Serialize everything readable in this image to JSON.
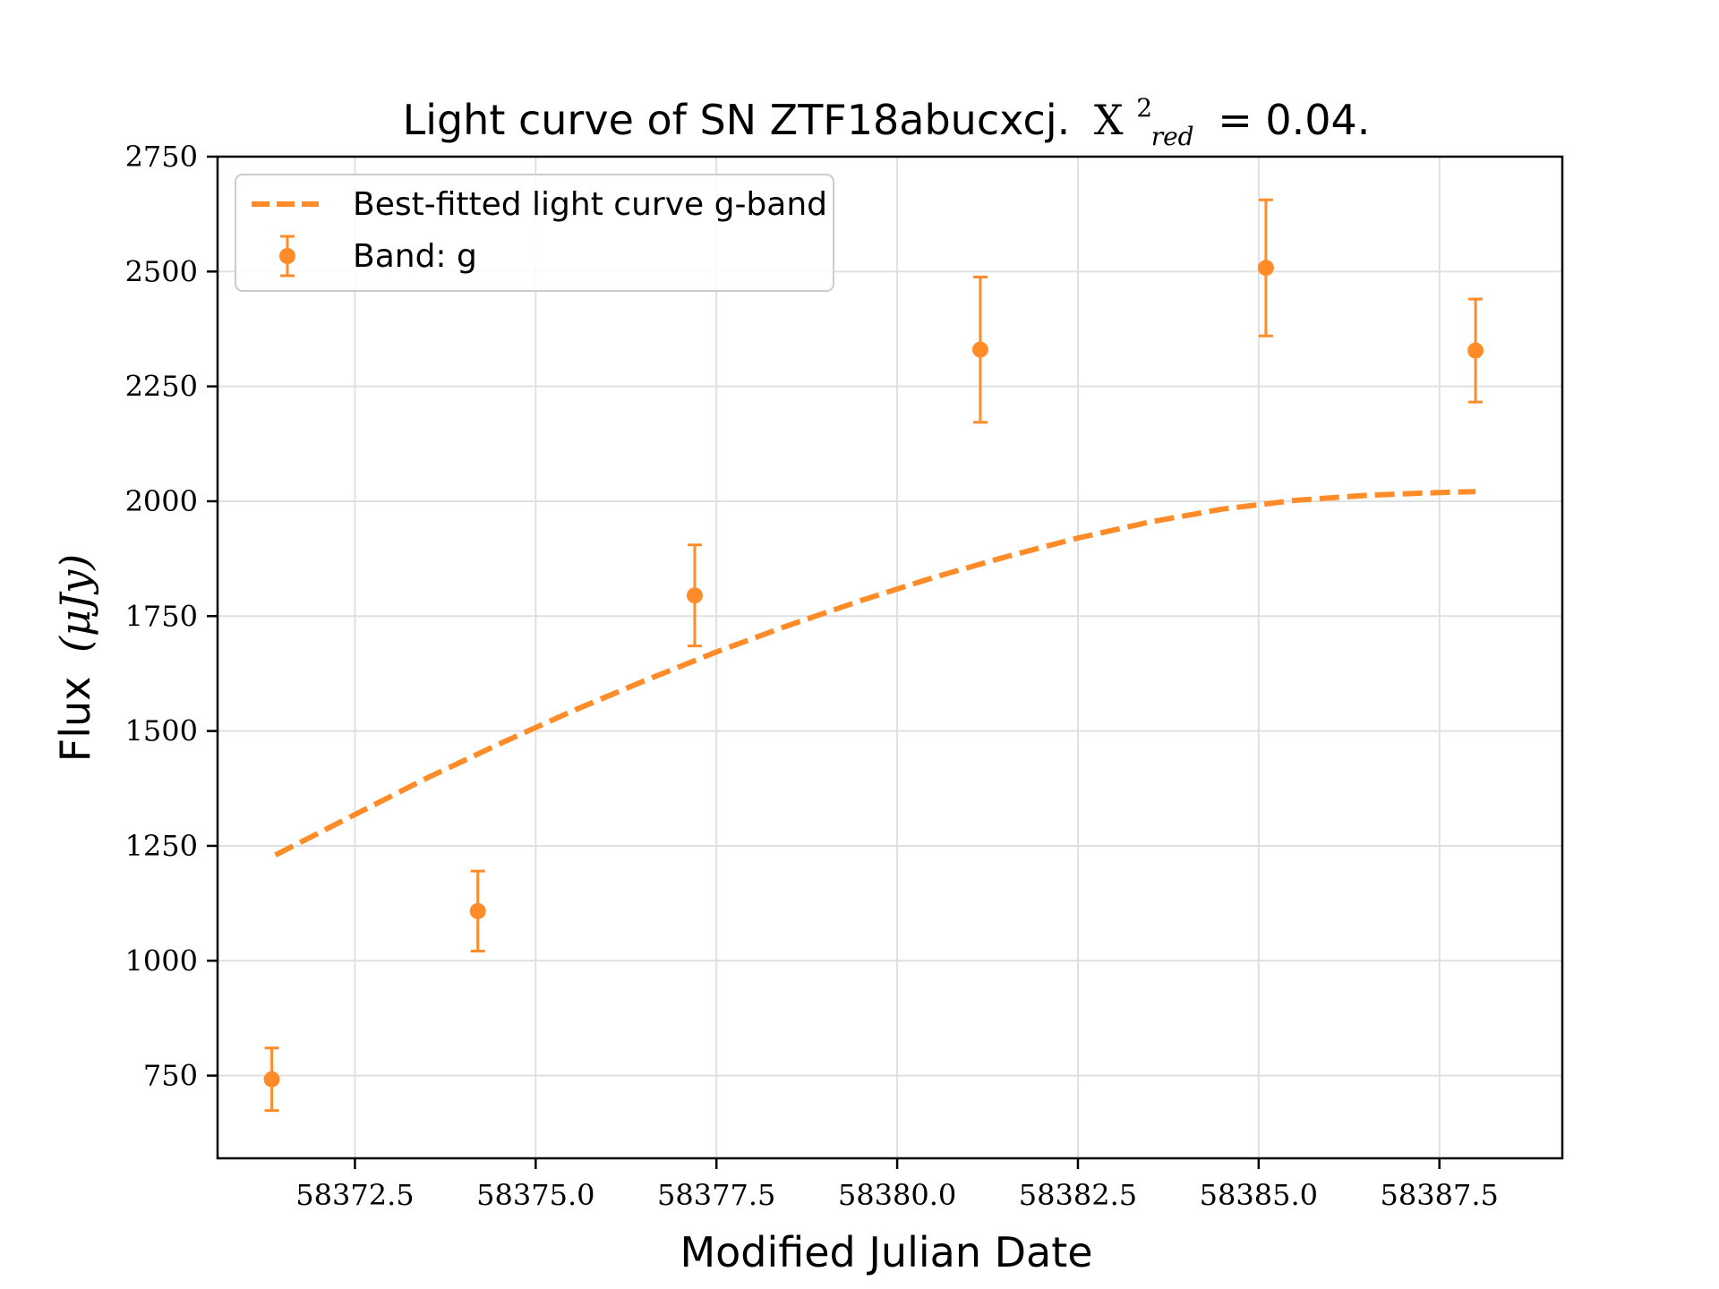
{
  "chart_data": {
    "type": "scatter",
    "title": {
      "prefix": "Light curve of SN ZTF18abucxcj.",
      "symbol": "X",
      "superscript": "2",
      "subscript": "red",
      "suffix": "= 0.04."
    },
    "xlabel": "Modified Julian Date",
    "ylabel": {
      "text": "Flux",
      "unit": "(μJy)"
    },
    "xlim": [
      58370.6,
      58389.2
    ],
    "ylim": [
      570,
      2750
    ],
    "xticks": [
      58372.5,
      58375.0,
      58377.5,
      58380.0,
      58382.5,
      58385.0,
      58387.5
    ],
    "xtick_labels": [
      "58372.5",
      "58375.0",
      "58377.5",
      "58380.0",
      "58382.5",
      "58385.0",
      "58387.5"
    ],
    "yticks": [
      750,
      1000,
      1250,
      1500,
      1750,
      2000,
      2250,
      2500,
      2750
    ],
    "ytick_labels": [
      "750",
      "1000",
      "1250",
      "1500",
      "1750",
      "2000",
      "2250",
      "2500",
      "2750"
    ],
    "grid": true,
    "legend_position": "top-left",
    "series": [
      {
        "name": "Best-fitted light curve g-band",
        "kind": "line",
        "style": "dashed",
        "color": "#ff8c28",
        "x": [
          58371.4,
          58372.5,
          58373.5,
          58374.5,
          58375.5,
          58376.5,
          58377.5,
          58378.5,
          58379.5,
          58380.5,
          58381.5,
          58382.5,
          58383.5,
          58384.5,
          58385.5,
          58386.5,
          58387.5,
          58388.0
        ],
        "y": [
          1230,
          1318,
          1398,
          1472,
          1543,
          1609,
          1672,
          1730,
          1784,
          1834,
          1879,
          1920,
          1955,
          1983,
          2002,
          2013,
          2019,
          2021
        ]
      },
      {
        "name": "Band: g",
        "kind": "errorbar",
        "color": "#ff8c28",
        "x": [
          58371.35,
          58374.2,
          58377.2,
          58381.15,
          58385.1,
          58388.0
        ],
        "y": [
          742,
          1108,
          1795,
          2330,
          2508,
          2328
        ],
        "yerr": [
          68,
          87,
          110,
          158,
          148,
          112
        ]
      }
    ]
  }
}
